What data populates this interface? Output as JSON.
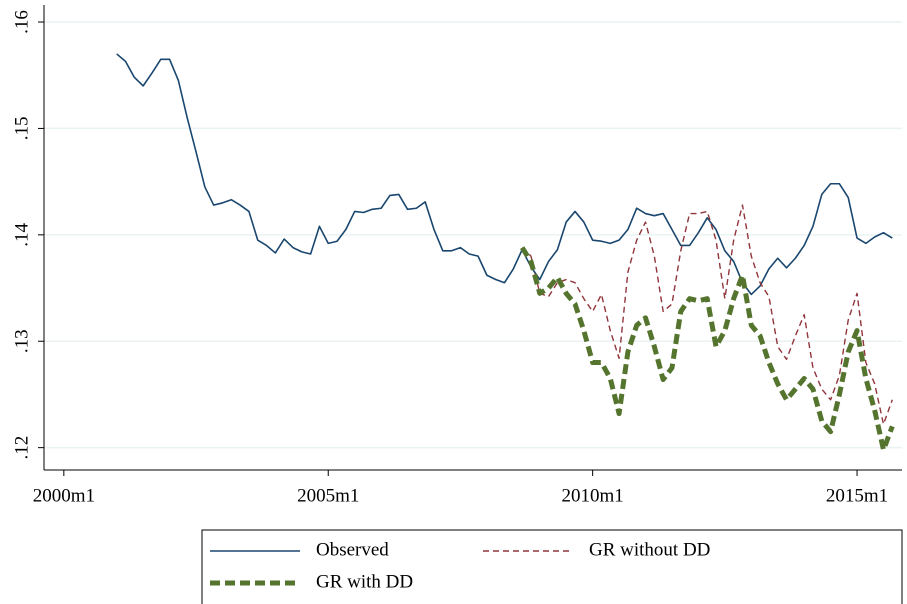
{
  "chart_data": {
    "type": "line",
    "x": [
      492,
      494,
      496,
      498,
      500,
      502,
      504,
      506,
      508,
      510,
      512,
      514,
      516,
      518,
      520,
      522,
      524,
      526,
      528,
      530,
      532,
      534,
      536,
      538,
      540,
      542,
      544,
      546,
      548,
      550,
      552,
      554,
      556,
      558,
      560,
      562,
      564,
      566,
      568,
      570,
      572,
      574,
      576,
      578,
      580,
      582,
      584,
      586,
      588,
      590,
      592,
      594,
      596,
      598,
      600,
      602,
      604,
      606,
      608,
      610,
      612,
      614,
      616,
      618,
      620,
      622,
      624,
      626,
      628,
      630,
      632,
      634,
      636,
      638,
      640,
      642,
      644,
      646,
      648,
      650,
      652,
      654,
      656,
      658,
      660,
      662,
      664,
      666,
      668
    ],
    "xlim": [
      475.5,
      670.2
    ],
    "xticks": [
      {
        "value": 480,
        "label": "2000m1"
      },
      {
        "value": 540,
        "label": "2005m1"
      },
      {
        "value": 600,
        "label": "2010m1"
      },
      {
        "value": 660,
        "label": "2015m1"
      }
    ],
    "ylim": [
      0.1179,
      0.1616
    ],
    "yticks": [
      {
        "value": 0.12,
        "label": ".12"
      },
      {
        "value": 0.13,
        "label": ".13"
      },
      {
        "value": 0.14,
        "label": ".14"
      },
      {
        "value": 0.15,
        "label": ".15"
      },
      {
        "value": 0.16,
        "label": ".16"
      }
    ],
    "grid": true,
    "legend": "bottom",
    "series": [
      {
        "name": "Observed",
        "color": "#1a476f",
        "style": "solid",
        "width": 1.6,
        "values": [
          0.157,
          0.1563,
          0.1548,
          0.154,
          0.1552,
          0.1565,
          0.1565,
          0.1545,
          0.151,
          0.1478,
          0.1445,
          0.1428,
          0.143,
          0.1433,
          0.1428,
          0.1422,
          0.1395,
          0.139,
          0.1383,
          0.1396,
          0.1388,
          0.1384,
          0.1382,
          0.1408,
          0.1392,
          0.1394,
          0.1405,
          0.1422,
          0.1421,
          0.1424,
          0.1425,
          0.1437,
          0.1438,
          0.1424,
          0.1425,
          0.1431,
          0.1405,
          0.1385,
          0.1385,
          0.1388,
          0.1382,
          0.138,
          0.1362,
          0.1358,
          0.1355,
          0.1368,
          0.1386,
          0.137,
          0.1358,
          0.1375,
          0.1386,
          0.1412,
          0.1422,
          0.1412,
          0.1395,
          0.1394,
          0.1392,
          0.1395,
          0.1405,
          0.1425,
          0.142,
          0.1418,
          0.142,
          0.1405,
          0.139,
          0.139,
          0.1402,
          0.1416,
          0.1405,
          0.1385,
          0.1375,
          0.1355,
          0.1344,
          0.1352,
          0.1368,
          0.1378,
          0.1369,
          0.1378,
          0.139,
          0.1408,
          0.1438,
          0.1448,
          0.1448,
          0.1435,
          0.1397,
          0.1392,
          0.1398,
          0.1402,
          0.1397
        ]
      },
      {
        "name": "GR without DD",
        "color": "#90353b",
        "style": "dashed",
        "width": 1.4,
        "values": [
          null,
          null,
          null,
          null,
          null,
          null,
          null,
          null,
          null,
          null,
          null,
          null,
          null,
          null,
          null,
          null,
          null,
          null,
          null,
          null,
          null,
          null,
          null,
          null,
          null,
          null,
          null,
          null,
          null,
          null,
          null,
          null,
          null,
          null,
          null,
          null,
          null,
          null,
          null,
          null,
          null,
          null,
          null,
          null,
          null,
          null,
          0.1388,
          0.138,
          0.1345,
          0.1342,
          0.1355,
          0.1358,
          0.1355,
          0.134,
          0.1328,
          0.1344,
          0.131,
          0.1284,
          0.1365,
          0.1395,
          0.1412,
          0.138,
          0.1328,
          0.1335,
          0.1385,
          0.142,
          0.142,
          0.1422,
          0.1395,
          0.134,
          0.1395,
          0.1428,
          0.138,
          0.1355,
          0.1342,
          0.1295,
          0.1283,
          0.1305,
          0.1325,
          0.1275,
          0.1255,
          0.1245,
          0.1268,
          0.132,
          0.1345,
          0.128,
          0.126,
          0.1222,
          0.1245
        ]
      },
      {
        "name": "GR with DD",
        "color": "#55752f",
        "style": "dashed",
        "width": 5,
        "values": [
          null,
          null,
          null,
          null,
          null,
          null,
          null,
          null,
          null,
          null,
          null,
          null,
          null,
          null,
          null,
          null,
          null,
          null,
          null,
          null,
          null,
          null,
          null,
          null,
          null,
          null,
          null,
          null,
          null,
          null,
          null,
          null,
          null,
          null,
          null,
          null,
          null,
          null,
          null,
          null,
          null,
          null,
          null,
          null,
          null,
          null,
          0.1388,
          0.1375,
          0.1345,
          0.135,
          0.136,
          0.1345,
          0.1335,
          0.131,
          0.128,
          0.128,
          0.1265,
          0.1232,
          0.129,
          0.1315,
          0.1322,
          0.1295,
          0.1264,
          0.1275,
          0.1328,
          0.134,
          0.1338,
          0.134,
          0.1295,
          0.131,
          0.134,
          0.1362,
          0.1315,
          0.1305,
          0.128,
          0.126,
          0.1245,
          0.1255,
          0.1265,
          0.1255,
          0.1225,
          0.1215,
          0.125,
          0.129,
          0.131,
          0.1265,
          0.1235,
          0.1198,
          0.122
        ]
      }
    ]
  }
}
